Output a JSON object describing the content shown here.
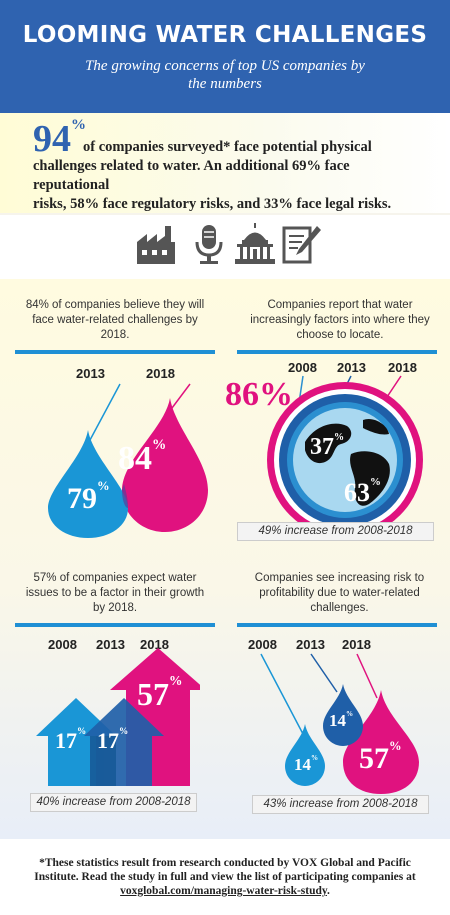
{
  "header": {
    "title": "LOOMING WATER CHALLENGES",
    "subtitle": "The growing concerns of top US companies by the numbers"
  },
  "intro": {
    "big_number": "94",
    "big_unit": "%",
    "line1": "of companies surveyed* face potential physical",
    "line2": "challenges related to water. An additional 69% face reputational",
    "line3": "risks, 58% face regulatory risks, and 33% face legal risks."
  },
  "icons": [
    "factory-icon",
    "microphone-icon",
    "capitol-icon",
    "document-pen-icon"
  ],
  "panels": {
    "p1": {
      "caption": "84% of companies believe they will face water-related challenges by 2018."
    },
    "p2": {
      "caption": "Companies report that water increasingly factors into where they choose to locate.",
      "big_label": "86%",
      "note": "49% increase from 2008-2018"
    },
    "p3": {
      "caption": "57% of companies expect water issues to be a factor in their growth by 2018.",
      "note": "40% increase from 2008-2018"
    },
    "p4": {
      "caption": "Companies see increasing risk to profitability due to water-related challenges.",
      "note": "43% increase from 2008-2018"
    }
  },
  "chart_data": [
    {
      "type": "bar",
      "title": "84% of companies believe they will face water-related challenges by 2018.",
      "categories": [
        "2013",
        "2018"
      ],
      "values": [
        79,
        84
      ],
      "unit": "%",
      "colors": [
        "#1a96d6",
        "#e0127f"
      ]
    },
    {
      "type": "bar",
      "title": "Companies report that water increasingly factors into where they choose to locate.",
      "categories": [
        "2008",
        "2013",
        "2018"
      ],
      "values": [
        37,
        63,
        86
      ],
      "unit": "%",
      "annotation": "49% increase from 2008-2018",
      "colors": [
        "#2b8fd0",
        "#1f5fa8",
        "#e0127f"
      ]
    },
    {
      "type": "bar",
      "title": "57% of companies expect water issues to be a factor in their growth by 2018.",
      "categories": [
        "2008",
        "2013",
        "2018"
      ],
      "values": [
        17,
        17,
        57
      ],
      "unit": "%",
      "annotation": "40% increase from 2008-2018",
      "colors": [
        "#1a96d6",
        "#1f5fa8",
        "#e0127f"
      ]
    },
    {
      "type": "bar",
      "title": "Companies see increasing risk to profitability due to water-related challenges.",
      "categories": [
        "2008",
        "2013",
        "2018"
      ],
      "values": [
        14,
        14,
        57
      ],
      "unit": "%",
      "annotation": "43% increase from 2008-2018",
      "colors": [
        "#1a96d6",
        "#1f5fa8",
        "#e0127f"
      ]
    }
  ],
  "footer": {
    "text": "*These statistics result from research conducted by VOX Global and Pacific Institute. Read the study in full and view the list of participating companies at",
    "link": "voxglobal.com/managing-water-risk-study"
  }
}
